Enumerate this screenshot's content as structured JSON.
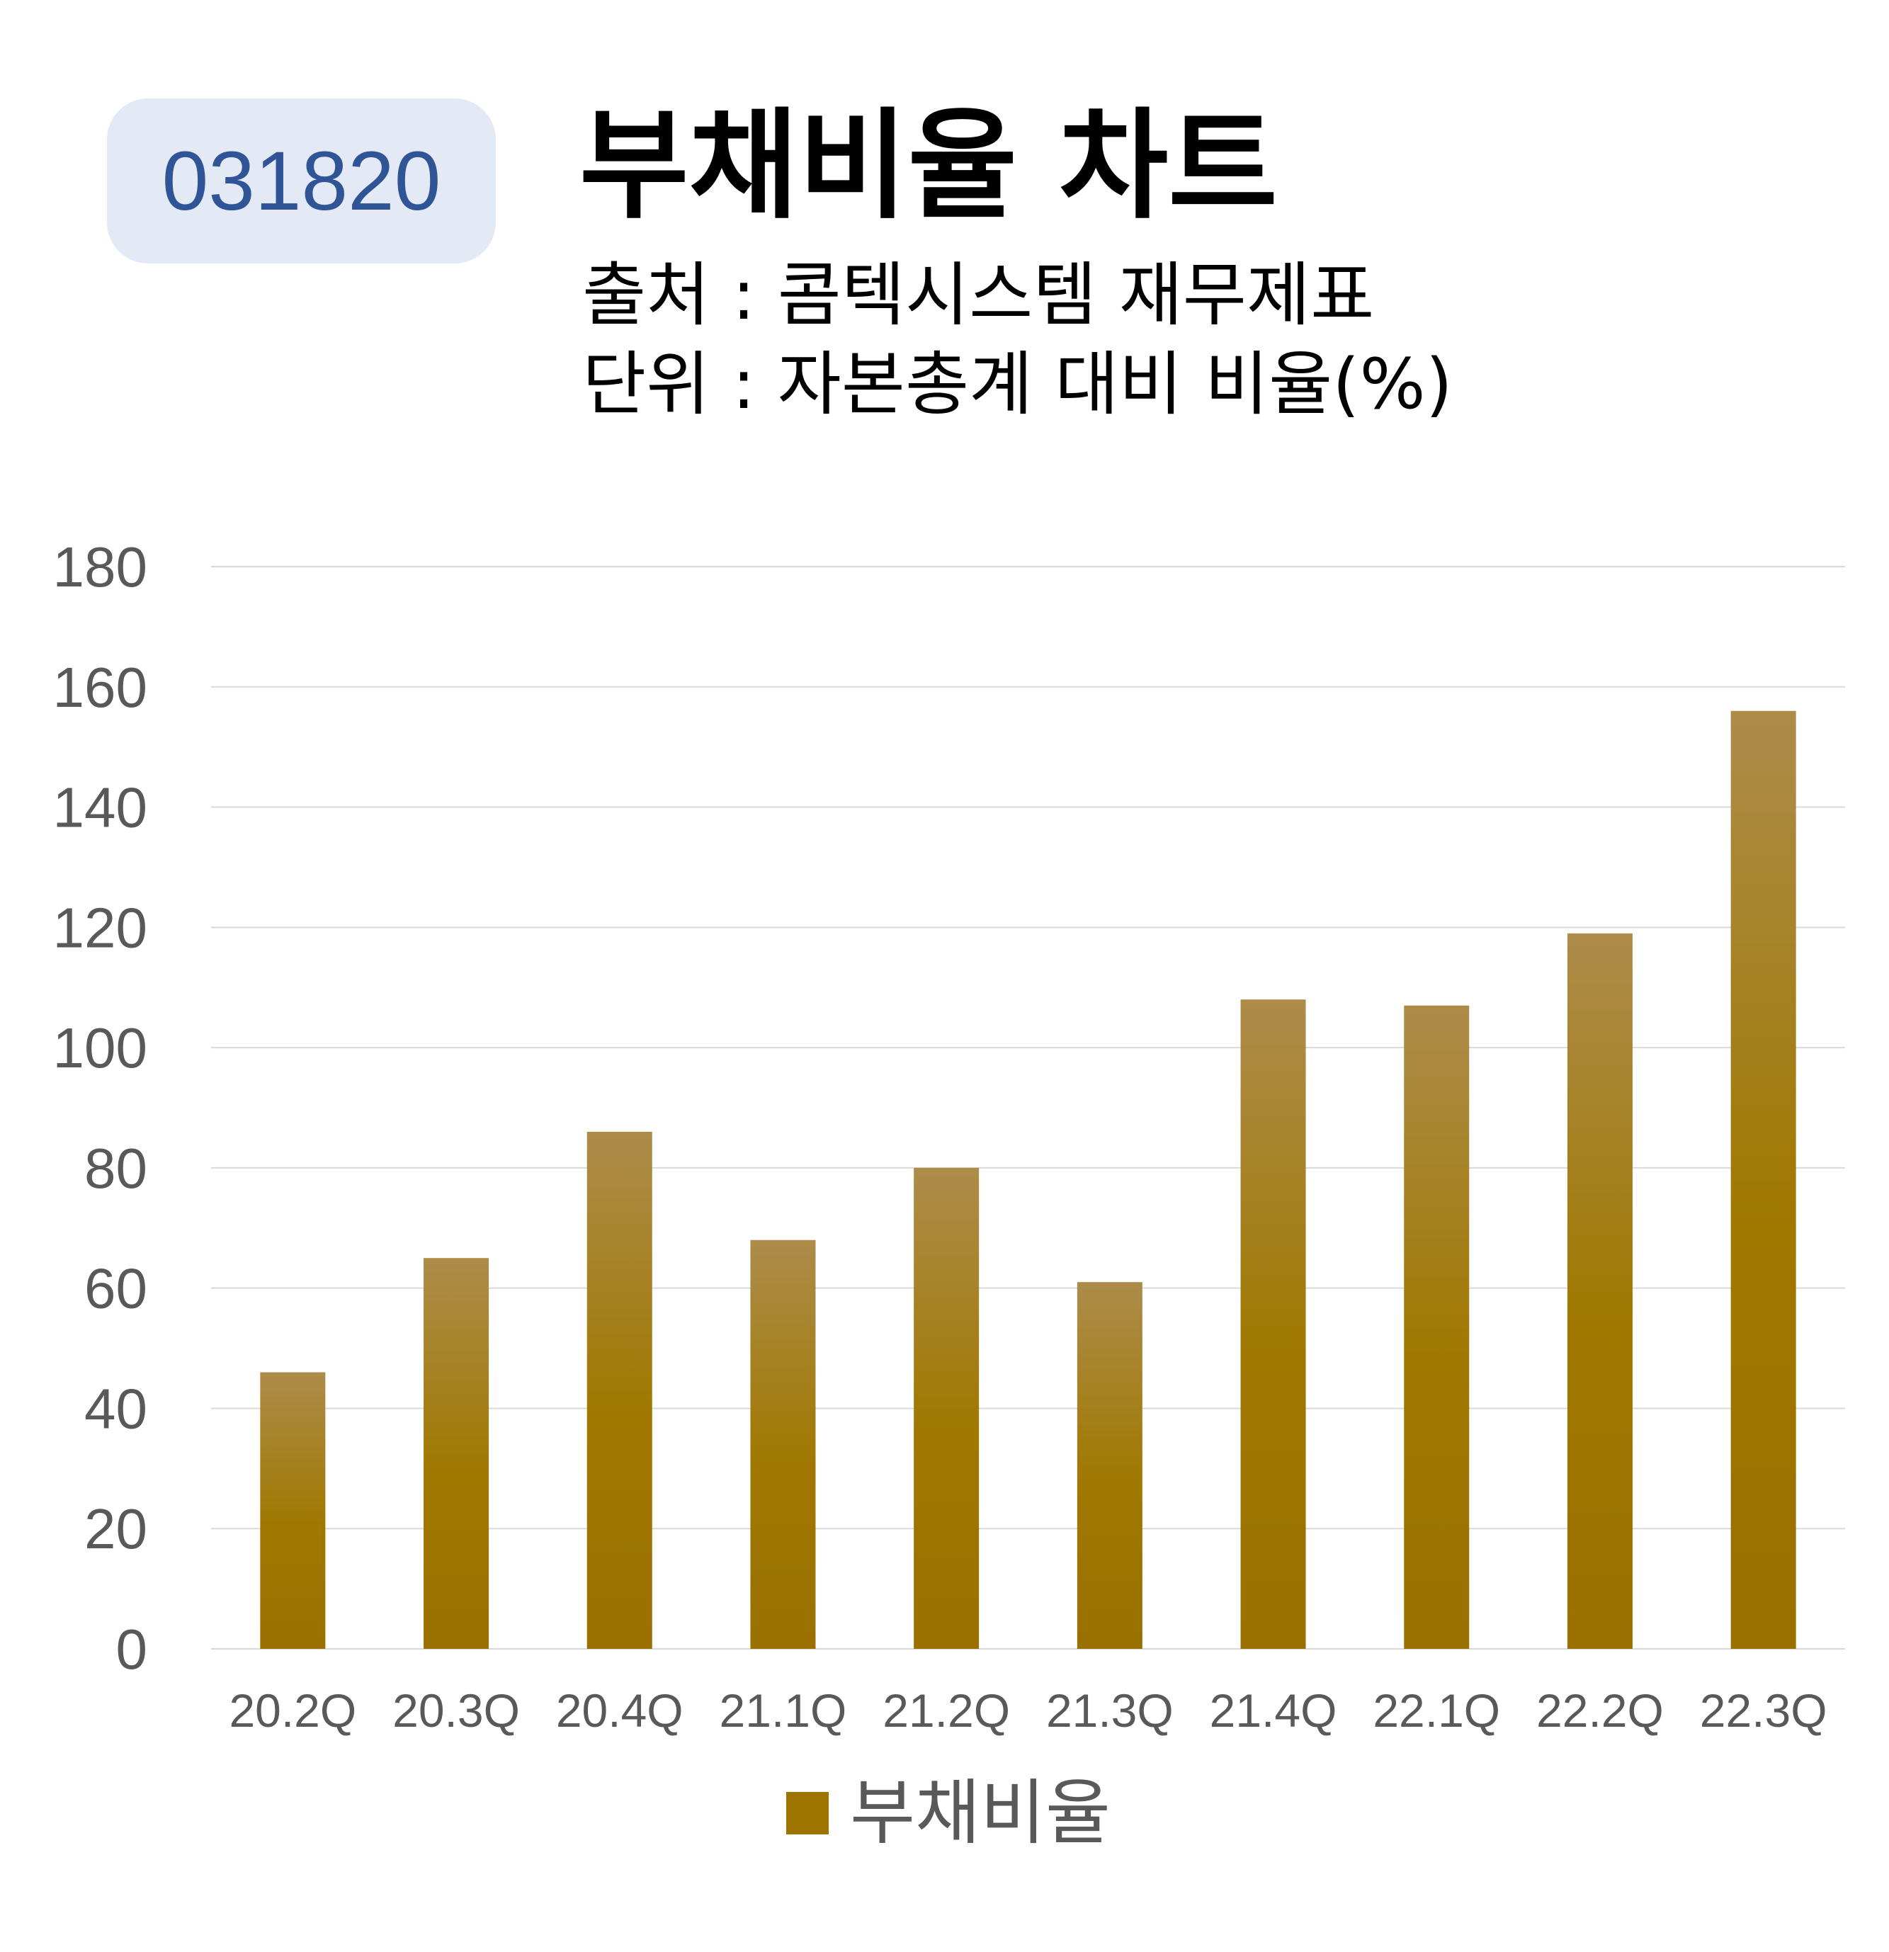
{
  "badge": {
    "code": "031820"
  },
  "header": {
    "title": "부채비율 차트",
    "source": "출처 : 콤텍시스템 재무제표",
    "unit": "단위 : 자본총계 대비 비율(%)"
  },
  "colors": {
    "bar_top": "#ad8c4a",
    "bar_bottom": "#9a7000",
    "grid": "#d9d9d9",
    "tick_text": "#595959",
    "badge_bg": "#e3e9f5",
    "badge_text": "#2f5597"
  },
  "chart_data": {
    "type": "bar",
    "categories": [
      "20.2Q",
      "20.3Q",
      "20.4Q",
      "21.1Q",
      "21.2Q",
      "21.3Q",
      "21.4Q",
      "22.1Q",
      "22.2Q",
      "22.3Q"
    ],
    "series": [
      {
        "name": "부채비율",
        "values": [
          46,
          65,
          86,
          68,
          80,
          61,
          108,
          107,
          119,
          156
        ]
      }
    ],
    "ylim": [
      0,
      180
    ],
    "yticks": [
      0,
      20,
      40,
      60,
      80,
      100,
      120,
      140,
      160,
      180
    ],
    "grid": true,
    "legend": "bottom"
  }
}
